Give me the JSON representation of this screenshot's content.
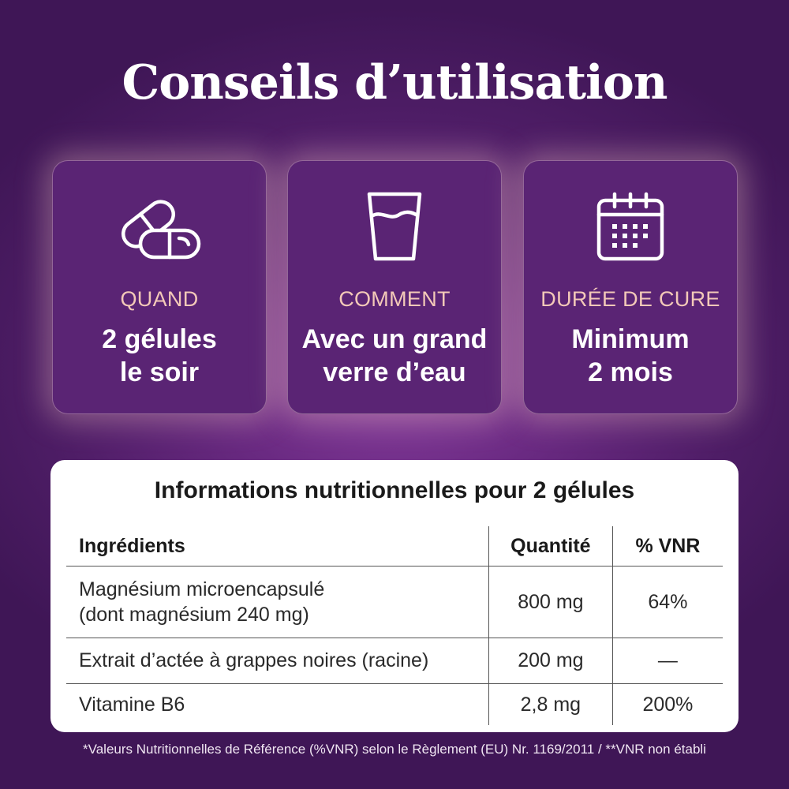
{
  "title": "Conseils d’utilisation",
  "cards": [
    {
      "icon": "capsules-icon",
      "label": "QUAND",
      "value_line1": "2 gélules",
      "value_line2": "le soir"
    },
    {
      "icon": "water-glass-icon",
      "label": "COMMENT",
      "value_line1": "Avec un grand",
      "value_line2": "verre d’eau"
    },
    {
      "icon": "calendar-icon",
      "label": "DURÉE DE CURE",
      "value_line1": "Minimum",
      "value_line2": "2 mois"
    }
  ],
  "nutrition": {
    "title": "Informations nutritionnelles pour 2 gélules",
    "headers": {
      "ingredient": "Ingrédients",
      "quantity": "Quantité",
      "vnr": "% VNR"
    },
    "rows": [
      {
        "ingredient_line1": "Magnésium microencapsulé",
        "ingredient_line2": "(dont magnésium 240 mg)",
        "quantity": "800 mg",
        "vnr": "64%"
      },
      {
        "ingredient_line1": "Extrait d’actée à grappes noires (racine)",
        "quantity": "200 mg",
        "vnr": "—"
      },
      {
        "ingredient_line1": "Vitamine B6",
        "quantity": "2,8 mg",
        "vnr": "200%"
      }
    ]
  },
  "footnote": "*Valeurs Nutritionnelles de Référence (%VNR) selon le Règlement (EU) Nr. 1169/2011 / **VNR non établi",
  "colors": {
    "background": "#4e1d66",
    "card": "#5a2474",
    "card_label": "#f3c9b8",
    "text_white": "#ffffff"
  }
}
